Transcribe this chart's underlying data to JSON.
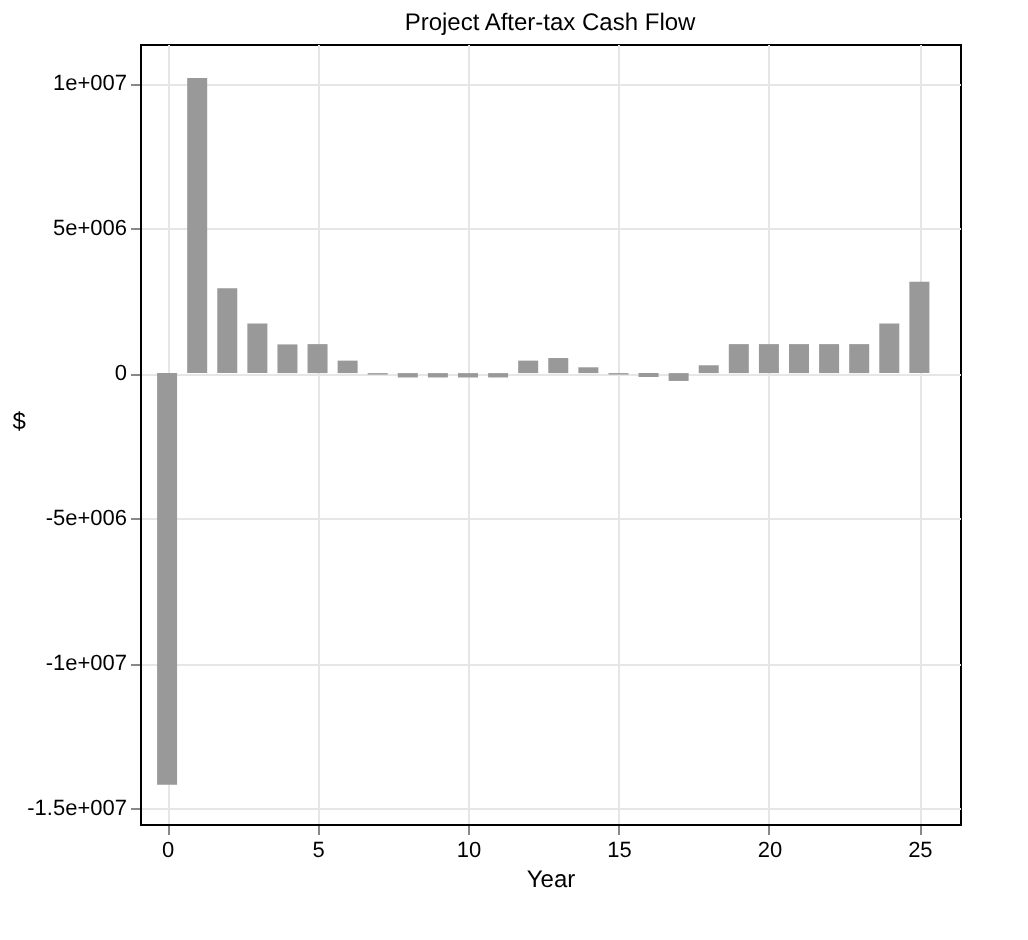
{
  "chart_data": {
    "type": "bar",
    "title": "Project After-tax Cash Flow",
    "xlabel": "Year",
    "ylabel": "$",
    "x": [
      0,
      1,
      2,
      3,
      4,
      5,
      6,
      7,
      8,
      9,
      10,
      11,
      12,
      13,
      14,
      15,
      16,
      17,
      18,
      19,
      20,
      21,
      22,
      23,
      24,
      25
    ],
    "series": [
      {
        "color": "#999999",
        "values": [
          -14200000,
          10180000,
          2930000,
          1710000,
          990000,
          1000000,
          430000,
          -50000,
          -150000,
          -150000,
          -150000,
          -150000,
          430000,
          520000,
          200000,
          -50000,
          -130000,
          -270000,
          270000,
          1000000,
          1000000,
          1000000,
          1000000,
          1000000,
          1710000,
          3150000
        ]
      }
    ],
    "xlim": [
      -0.9,
      26.35
    ],
    "xticks": [
      0,
      5,
      10,
      15,
      20,
      25
    ],
    "ylim": [
      -15550000,
      11350000
    ],
    "yticks": [
      {
        "value": -15000000,
        "label": "-1.5e+007"
      },
      {
        "value": -10000000,
        "label": "-1e+007"
      },
      {
        "value": -5000000,
        "label": "-5e+006"
      },
      0,
      {
        "value": 5000000,
        "label": "5e+006"
      },
      {
        "value": 10000000,
        "label": "1e+007"
      }
    ],
    "grid": true,
    "legend": false
  }
}
